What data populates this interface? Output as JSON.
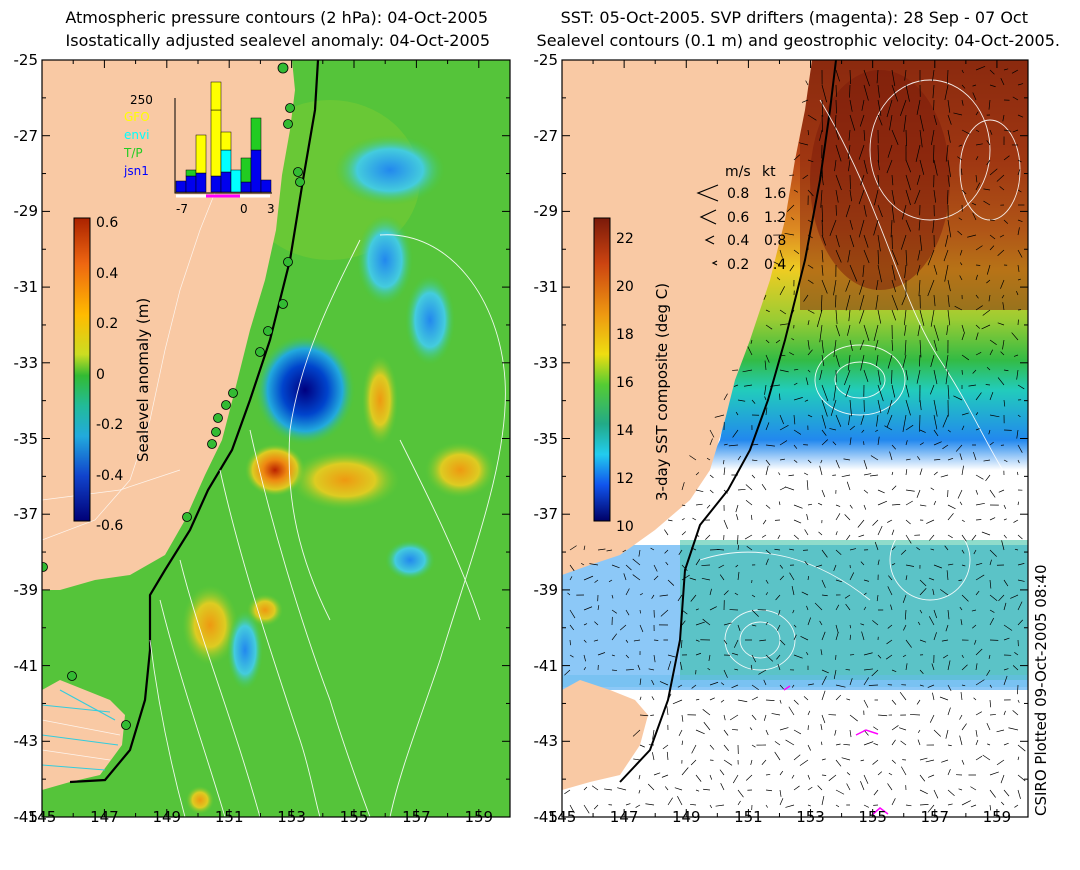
{
  "left_panel": {
    "title_line1": "Atmospheric pressure contours (2 hPa): 04-Oct-2005",
    "title_line2": "Isostatically adjusted sealevel anomaly: 04-Oct-2005",
    "colorbar_label": "Sealevel anomaly (m)",
    "colorbar_ticks": [
      "0.6",
      "0.4",
      "0.2",
      "0",
      "-0.2",
      "-0.4",
      "-0.6"
    ],
    "inset": {
      "count_label": "250",
      "legend": [
        {
          "label": "GFO",
          "color": "#ffff00"
        },
        {
          "label": "envi",
          "color": "#00ffff"
        },
        {
          "label": "T/P",
          "color": "#22cc22"
        },
        {
          "label": "jsn1",
          "color": "#0000ff"
        }
      ],
      "x_ticks": [
        "-7",
        "0",
        "3"
      ]
    }
  },
  "right_panel": {
    "title_line1": "SST: 05-Oct-2005. SVP drifters (magenta): 28 Sep - 07 Oct",
    "title_line2": "Sealevel contours (0.1 m) and geostrophic velocity: 04-Oct-2005.",
    "colorbar_label": "3-day SST composite (deg C)",
    "colorbar_ticks": [
      "22",
      "20",
      "18",
      "16",
      "14",
      "12",
      "10"
    ],
    "velocity_legend": {
      "header_ms": "m/s",
      "header_kt": "kt",
      "rows": [
        {
          "ms": "0.8",
          "kt": "1.6"
        },
        {
          "ms": "0.6",
          "kt": "1.2"
        },
        {
          "ms": "0.4",
          "kt": "0.8"
        },
        {
          "ms": "0.2",
          "kt": "0.4"
        }
      ]
    },
    "credit": "CSIRO Plotted 09-Oct-2005 08:40"
  },
  "axes": {
    "y_ticks": [
      "-25",
      "-27",
      "-29",
      "-31",
      "-33",
      "-35",
      "-37",
      "-39",
      "-41",
      "-43",
      "-45"
    ],
    "x_ticks": [
      "145",
      "147",
      "149",
      "151",
      "153",
      "155",
      "157",
      "159"
    ]
  },
  "colors": {
    "land": "#f9c9a4",
    "ocean_mid": "#33bb33",
    "sla_low": "#0000aa",
    "sla_high": "#cc3300",
    "sst_warm": "#8b2a0f",
    "sst_cool": "#1e90ff"
  }
}
